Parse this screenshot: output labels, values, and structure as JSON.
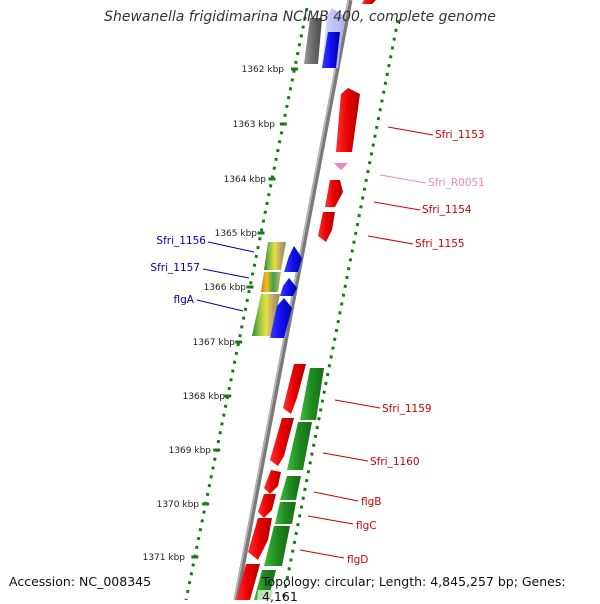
{
  "title": "Shewanella frigidimarina NCIMB 400, complete genome",
  "footer": {
    "accession": "Accession: NC_008345",
    "summary": "Topology: circular; Length: 4,845,257 bp; Genes: 4,161"
  },
  "colors": {
    "red": "#e00000",
    "blue": "#1010ee",
    "green": "#1f8a1f",
    "pink": "#f080c0",
    "label_red": "#cc0000",
    "label_blue": "#0000aa",
    "label_pink": "#ee88bb",
    "dots": "#1a7a1a",
    "backbone": "#808080"
  },
  "scale": {
    "ticks": [
      "1362 kbp",
      "1363 kbp",
      "1364 kbp",
      "1365 kbp",
      "1366 kbp",
      "1367 kbp",
      "1368 kbp",
      "1369 kbp",
      "1370 kbp",
      "1371 kbp"
    ]
  },
  "labels": [
    {
      "name": "Sfri_1153",
      "color": "label_red"
    },
    {
      "name": "Sfri_R0051",
      "color": "label_pink"
    },
    {
      "name": "Sfri_1154",
      "color": "label_red"
    },
    {
      "name": "Sfri_1155",
      "color": "label_red"
    },
    {
      "name": "Sfri_1156",
      "color": "label_blue"
    },
    {
      "name": "Sfri_1157",
      "color": "label_blue"
    },
    {
      "name": "flgA",
      "color": "label_blue"
    },
    {
      "name": "Sfri_1159",
      "color": "label_red"
    },
    {
      "name": "Sfri_1160",
      "color": "label_red"
    },
    {
      "name": "flgB",
      "color": "label_red"
    },
    {
      "name": "flgC",
      "color": "label_red"
    },
    {
      "name": "flgD",
      "color": "label_red"
    }
  ]
}
